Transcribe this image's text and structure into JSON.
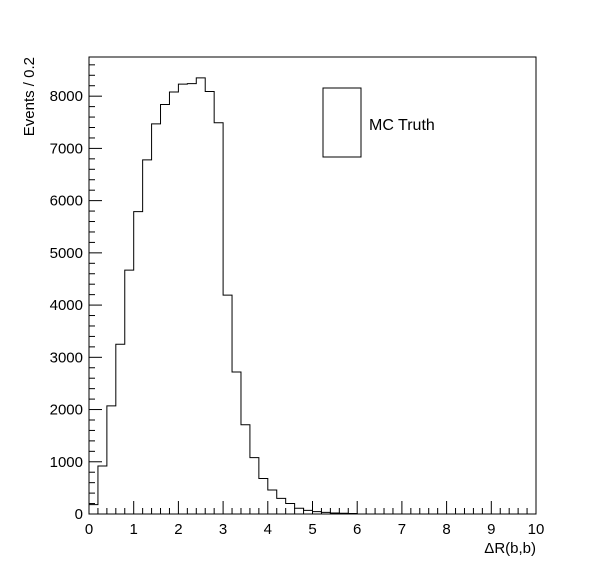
{
  "chart_data": {
    "type": "histogram",
    "xlabel": "ΔR(b,b)",
    "ylabel": "Events / 0.2",
    "xlim": [
      0,
      10
    ],
    "ylim": [
      0,
      8750
    ],
    "bin_width": 0.2,
    "x_ticks": [
      "0",
      "1",
      "2",
      "3",
      "4",
      "5",
      "6",
      "7",
      "8",
      "9",
      "10"
    ],
    "y_ticks": [
      "0",
      "1000",
      "2000",
      "3000",
      "4000",
      "5000",
      "6000",
      "7000",
      "8000"
    ],
    "legend": {
      "position": "top-right",
      "entries": [
        "MC Truth"
      ]
    },
    "series": [
      {
        "name": "MC Truth",
        "values": [
          180,
          920,
          2070,
          3250,
          4670,
          5790,
          6780,
          7470,
          7840,
          8080,
          8230,
          8240,
          8350,
          8090,
          7490,
          4190,
          2720,
          1710,
          1080,
          680,
          460,
          300,
          200,
          110,
          70,
          45,
          30,
          20,
          15,
          10,
          0,
          0,
          0,
          0,
          0,
          0,
          0,
          0,
          0,
          0,
          0,
          0,
          0,
          0,
          0,
          0,
          0,
          0,
          0,
          0
        ]
      }
    ]
  }
}
